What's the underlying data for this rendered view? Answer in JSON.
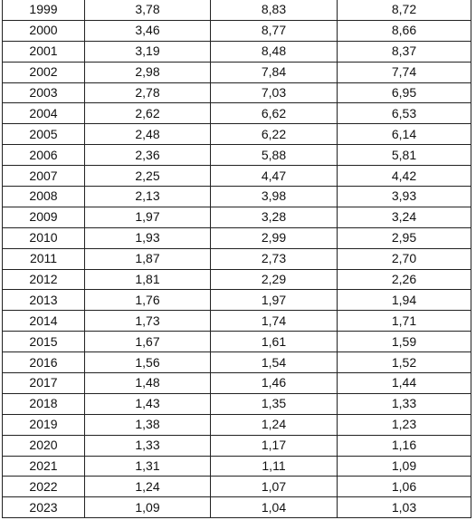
{
  "table": {
    "rows": [
      [
        "1999",
        "3,78",
        "8,83",
        "8,72"
      ],
      [
        "2000",
        "3,46",
        "8,77",
        "8,66"
      ],
      [
        "2001",
        "3,19",
        "8,48",
        "8,37"
      ],
      [
        "2002",
        "2,98",
        "7,84",
        "7,74"
      ],
      [
        "2003",
        "2,78",
        "7,03",
        "6,95"
      ],
      [
        "2004",
        "2,62",
        "6,62",
        "6,53"
      ],
      [
        "2005",
        "2,48",
        "6,22",
        "6,14"
      ],
      [
        "2006",
        "2,36",
        "5,88",
        "5,81"
      ],
      [
        "2007",
        "2,25",
        "4,47",
        "4,42"
      ],
      [
        "2008",
        "2,13",
        "3,98",
        "3,93"
      ],
      [
        "2009",
        "1,97",
        "3,28",
        "3,24"
      ],
      [
        "2010",
        "1,93",
        "2,99",
        "2,95"
      ],
      [
        "2011",
        "1,87",
        "2,73",
        "2,70"
      ],
      [
        "2012",
        "1,81",
        "2,29",
        "2,26"
      ],
      [
        "2013",
        "1,76",
        "1,97",
        "1,94"
      ],
      [
        "2014",
        "1,73",
        "1,74",
        "1,71"
      ],
      [
        "2015",
        "1,67",
        "1,61",
        "1,59"
      ],
      [
        "2016",
        "1,56",
        "1,54",
        "1,52"
      ],
      [
        "2017",
        "1,48",
        "1,46",
        "1,44"
      ],
      [
        "2018",
        "1,43",
        "1,35",
        "1,33"
      ],
      [
        "2019",
        "1,38",
        "1,24",
        "1,23"
      ],
      [
        "2020",
        "1,33",
        "1,17",
        "1,16"
      ],
      [
        "2021",
        "1,31",
        "1,11",
        "1,09"
      ],
      [
        "2022",
        "1,24",
        "1,07",
        "1,06"
      ],
      [
        "2023",
        "1,09",
        "1,04",
        "1,03"
      ]
    ]
  }
}
